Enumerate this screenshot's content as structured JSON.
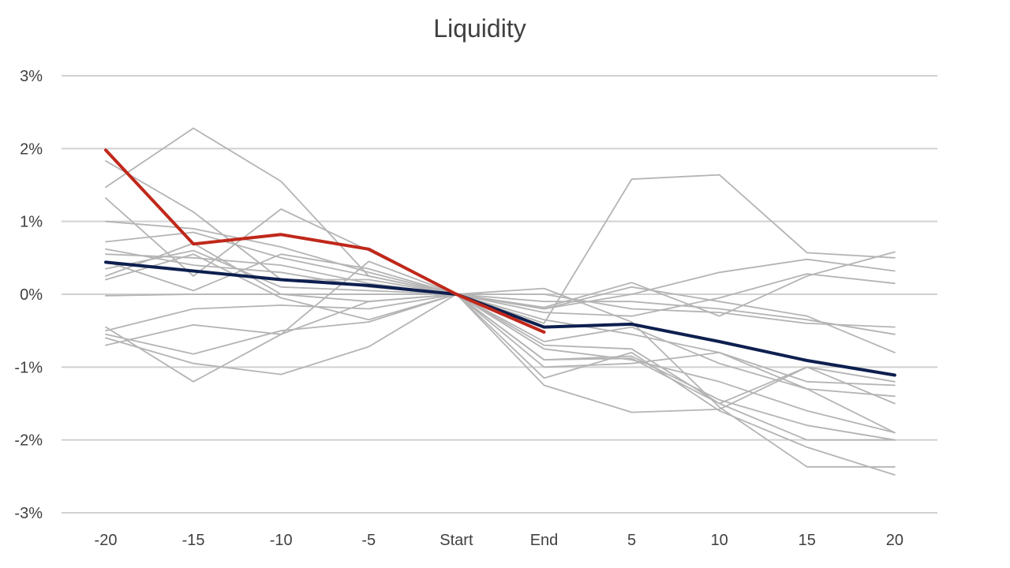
{
  "chart_data": {
    "type": "line",
    "title": "Liquidity",
    "xlabel": "",
    "ylabel": "",
    "categories": [
      "-20",
      "-15",
      "-10",
      "-5",
      "Start",
      "End",
      "5",
      "10",
      "15",
      "20"
    ],
    "ylim": [
      -3,
      3
    ],
    "yticks": [
      3,
      2,
      1,
      0,
      -1,
      -2,
      -3
    ],
    "ytick_labels": [
      "3%",
      "2%",
      "1%",
      "0%",
      "-1%",
      "-2%",
      "-3%"
    ],
    "grid": true,
    "legend": "none",
    "colors": {
      "highlight": "#c0281a",
      "average": "#0d1f4f",
      "background": "#b4b4b4",
      "grid": "#d0d0d0"
    },
    "background_series": [
      {
        "values": [
          1.47,
          2.28,
          1.55,
          0.25,
          0,
          -0.7,
          -0.75,
          -1.5,
          -2.0,
          -2.0
        ]
      },
      {
        "values": [
          1.83,
          1.13,
          0.2,
          0.2,
          0,
          0.08,
          -0.38,
          -1.55,
          -2.37,
          -2.37
        ]
      },
      {
        "values": [
          1.32,
          0.25,
          1.17,
          0.6,
          0,
          -0.4,
          1.58,
          1.64,
          0.57,
          0.5
        ]
      },
      {
        "values": [
          1.0,
          0.9,
          0.65,
          0.3,
          0,
          -0.18,
          0.16,
          -0.3,
          0.25,
          0.58
        ]
      },
      {
        "values": [
          0.72,
          0.85,
          0.5,
          0.25,
          0,
          -0.9,
          -0.88,
          -1.5,
          -1.0,
          -1.5
        ]
      },
      {
        "values": [
          0.62,
          0.4,
          0.3,
          0.1,
          0,
          -1.0,
          -0.95,
          -0.8,
          -1.3,
          -1.4
        ]
      },
      {
        "values": [
          0.55,
          0.5,
          0.4,
          0.15,
          0,
          -0.2,
          0.0,
          0.3,
          0.48,
          0.32
        ]
      },
      {
        "values": [
          0.45,
          0.05,
          0.55,
          0.35,
          0,
          -0.25,
          -0.3,
          -0.05,
          0.28,
          0.15
        ]
      },
      {
        "values": [
          0.35,
          0.6,
          0.1,
          0.05,
          0,
          -0.65,
          -0.45,
          -0.95,
          -1.3,
          -1.9
        ]
      },
      {
        "values": [
          0.25,
          0.7,
          0.0,
          -0.1,
          0,
          -1.15,
          -0.8,
          -1.6,
          -2.1,
          -2.48
        ]
      },
      {
        "values": [
          0.2,
          0.55,
          -0.05,
          -0.35,
          0,
          -0.75,
          -0.9,
          -1.2,
          -1.6,
          -1.9
        ]
      },
      {
        "values": [
          -0.02,
          0.0,
          0.0,
          0.0,
          0,
          0.0,
          -0.2,
          -0.25,
          -0.4,
          -0.45
        ]
      },
      {
        "values": [
          -0.45,
          -1.2,
          -0.55,
          0.45,
          0,
          -0.1,
          -0.1,
          -0.2,
          -0.35,
          -0.55
        ]
      },
      {
        "values": [
          -0.5,
          -0.2,
          -0.15,
          -0.2,
          0,
          -0.2,
          0.1,
          -0.1,
          -0.3,
          -0.8
        ]
      },
      {
        "values": [
          -0.55,
          -0.82,
          -0.5,
          -0.38,
          0,
          -1.25,
          -1.62,
          -1.58,
          -1.0,
          -1.2
        ]
      },
      {
        "values": [
          -0.7,
          -0.42,
          -0.55,
          -0.1,
          0,
          -0.35,
          -0.55,
          -0.8,
          -1.2,
          -1.25
        ]
      },
      {
        "values": [
          -0.6,
          -0.95,
          -1.1,
          -0.72,
          0,
          -0.9,
          -0.85,
          -1.45,
          -1.8,
          -2.0
        ]
      }
    ],
    "average_series": {
      "values": [
        0.44,
        0.32,
        0.2,
        0.12,
        0,
        -0.45,
        -0.41,
        -0.65,
        -0.91,
        -1.11
      ]
    },
    "highlight_series": {
      "values": [
        1.98,
        0.69,
        0.82,
        0.62,
        0,
        -0.52
      ]
    }
  }
}
